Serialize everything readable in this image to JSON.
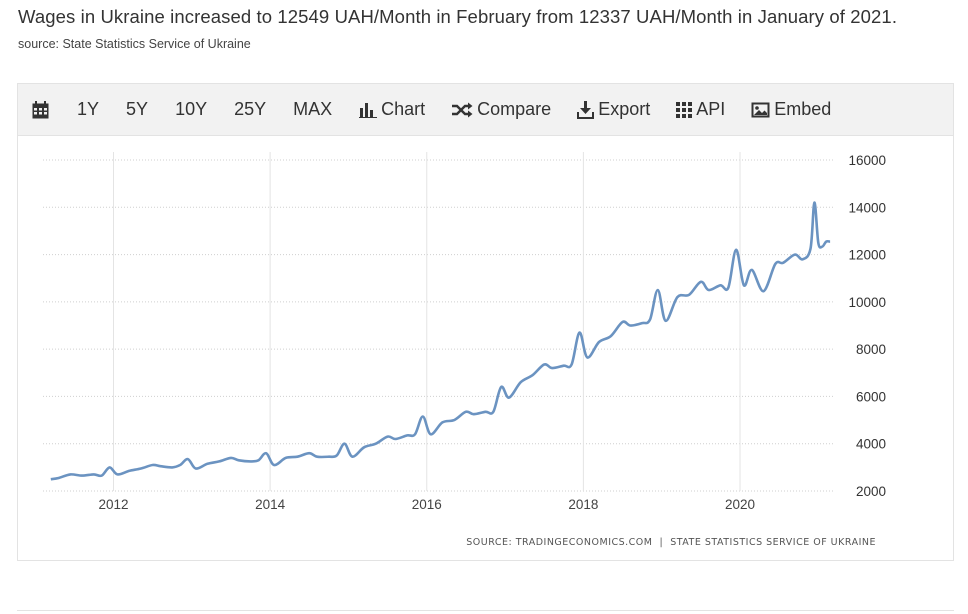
{
  "headline": "Wages in Ukraine increased to 12549 UAH/Month in February from 12337 UAH/Month in January of 2021.",
  "source": "source: State Statistics Service of Ukraine",
  "toolbar": {
    "calendar_icon": "calendar-icon",
    "ranges": [
      "1Y",
      "5Y",
      "10Y",
      "25Y",
      "MAX"
    ],
    "chart_label": "Chart",
    "compare_label": "Compare",
    "export_label": "Export",
    "api_label": "API",
    "embed_label": "Embed"
  },
  "credit": {
    "left": "SOURCE: TRADINGECONOMICS.COM",
    "separator": "|",
    "right": "STATE STATISTICS SERVICE OF UKRAINE"
  },
  "colors": {
    "line": "#6b93c1",
    "grid": "#cfcfcf",
    "toolbar_bg": "#f2f2f2"
  },
  "chart_data": {
    "type": "line",
    "title": "",
    "xlabel": "",
    "ylabel": "",
    "ylim": [
      2000,
      16000
    ],
    "y_ticks": [
      16000,
      14000,
      12000,
      10000,
      8000,
      6000,
      4000,
      2000
    ],
    "x_ticks": [
      "2012",
      "2014",
      "2016",
      "2018",
      "2020"
    ],
    "x_tick_values": [
      2012,
      2014,
      2016,
      2018,
      2020
    ],
    "xlim": [
      2011.1,
      2021.2
    ],
    "y_axis_position": "right",
    "grid": true,
    "series": [
      {
        "x": [
          2011.2,
          2011.3,
          2011.45,
          2011.6,
          2011.75,
          2011.85,
          2011.95,
          2012.05,
          2012.2,
          2012.35,
          2012.5,
          2012.6,
          2012.75,
          2012.85,
          2012.95,
          2013.05,
          2013.2,
          2013.35,
          2013.5,
          2013.6,
          2013.75,
          2013.85,
          2013.95,
          2014.05,
          2014.2,
          2014.35,
          2014.5,
          2014.6,
          2014.75,
          2014.85,
          2014.95,
          2015.05,
          2015.2,
          2015.35,
          2015.5,
          2015.6,
          2015.75,
          2015.85,
          2015.95,
          2016.05,
          2016.2,
          2016.35,
          2016.5,
          2016.6,
          2016.75,
          2016.85,
          2016.95,
          2017.05,
          2017.2,
          2017.35,
          2017.5,
          2017.6,
          2017.75,
          2017.85,
          2017.95,
          2018.05,
          2018.2,
          2018.35,
          2018.5,
          2018.6,
          2018.75,
          2018.85,
          2018.95,
          2019.05,
          2019.2,
          2019.35,
          2019.5,
          2019.6,
          2019.75,
          2019.85,
          2019.95,
          2020.05,
          2020.15,
          2020.3,
          2020.45,
          2020.55,
          2020.7,
          2020.8,
          2020.9,
          2020.95,
          2021.0,
          2021.05,
          2021.1,
          2021.15
        ],
        "values": [
          2500,
          2550,
          2700,
          2650,
          2700,
          2650,
          3000,
          2700,
          2850,
          2950,
          3100,
          3050,
          3000,
          3100,
          3350,
          2950,
          3150,
          3250,
          3400,
          3300,
          3250,
          3300,
          3600,
          3100,
          3400,
          3450,
          3600,
          3450,
          3450,
          3500,
          4000,
          3450,
          3850,
          4000,
          4300,
          4200,
          4350,
          4400,
          5150,
          4400,
          4900,
          5000,
          5350,
          5250,
          5350,
          5350,
          6400,
          5950,
          6600,
          6900,
          7350,
          7200,
          7300,
          7350,
          8700,
          7650,
          8300,
          8550,
          9150,
          9000,
          9100,
          9250,
          10500,
          9200,
          10200,
          10300,
          10850,
          10500,
          10700,
          10600,
          12200,
          10700,
          11350,
          10450,
          11600,
          11650,
          12000,
          11800,
          12250,
          14200,
          12500,
          12337,
          12549,
          12549
        ]
      }
    ]
  }
}
